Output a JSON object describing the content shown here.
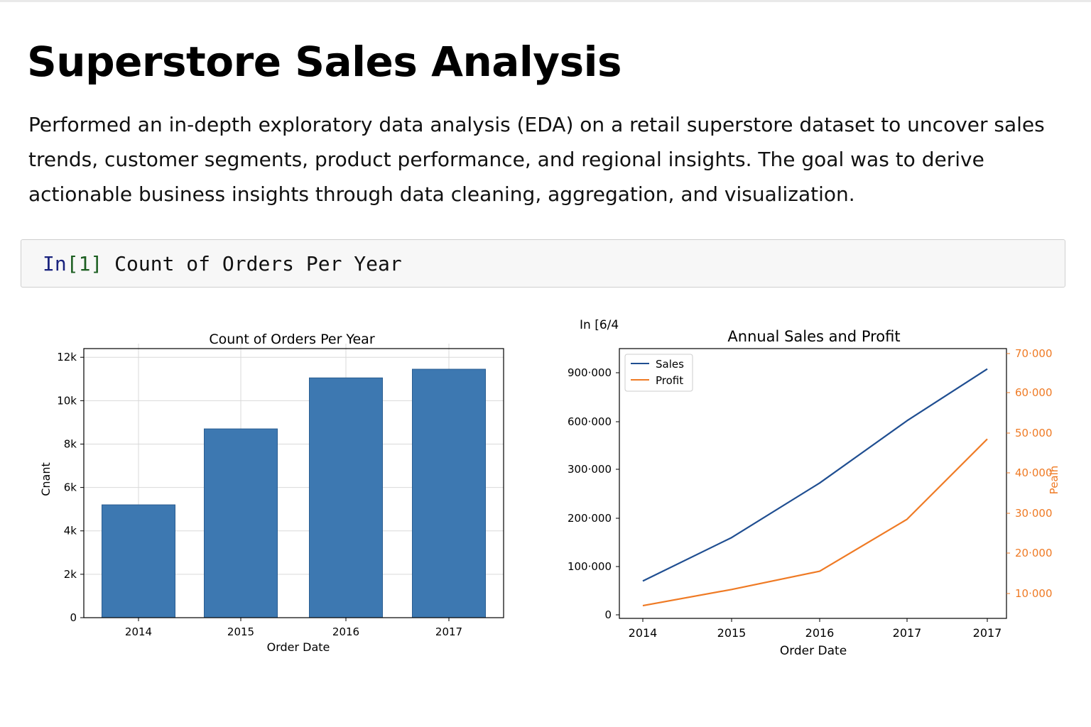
{
  "page": {
    "title": "Superstore Sales Analysis",
    "description": "Performed an in-depth exploratory data analysis (EDA) on a retail superstore dataset to uncover sales trends, customer segments, product performance, and regional insights. The goal was to derive actionable business insights through data cleaning, aggregation, and visualization."
  },
  "cells": {
    "cell1": {
      "prompt_in": "In",
      "prompt_number": "[1]",
      "code": "Count of Orders Per Year"
    },
    "cell2": {
      "prompt": "In [6/4"
    }
  },
  "colors": {
    "bar": "#3d78b1",
    "sales": "#1f4e91",
    "profit": "#ef7a24",
    "grid": "#d9d9d9"
  },
  "chart_data": [
    {
      "type": "bar",
      "title": "Count of Orders Per Year",
      "xlabel": "Order Date",
      "ylabel": "Cnant",
      "categories": [
        "2014",
        "2015",
        "2016",
        "2017"
      ],
      "values": [
        5200,
        8700,
        11050,
        11450
      ],
      "ylim": [
        0,
        12400
      ],
      "yticks": [
        0,
        2000,
        4000,
        6000,
        8000,
        10000,
        12000
      ],
      "ytick_labels": [
        "0",
        "2k",
        "4k",
        "6k",
        "8k",
        "10k",
        "12k"
      ],
      "grid": true
    },
    {
      "type": "line",
      "title": "Annual Sales and Profit",
      "xlabel": "Order Date",
      "ylabel_right": "Peaih",
      "x": [
        "2014",
        "2015",
        "2016",
        "2017",
        "2017"
      ],
      "y_left_tick_labels": [
        "0",
        "100·000",
        "200·000",
        "300·000",
        "600·000",
        "900·000"
      ],
      "y_right_tick_labels": [
        "10·000",
        "20·000",
        "30·000",
        "40·000",
        "50·000",
        "60·000",
        "70·000"
      ],
      "legend": "top-left",
      "grid": false,
      "series": [
        {
          "name": "Sales",
          "axis": "left",
          "values": [
            70000,
            160000,
            272000,
            606000,
            923000
          ]
        },
        {
          "name": "Profit",
          "axis": "right",
          "values": [
            7000,
            11000,
            15500,
            28500,
            48500
          ]
        }
      ]
    }
  ]
}
